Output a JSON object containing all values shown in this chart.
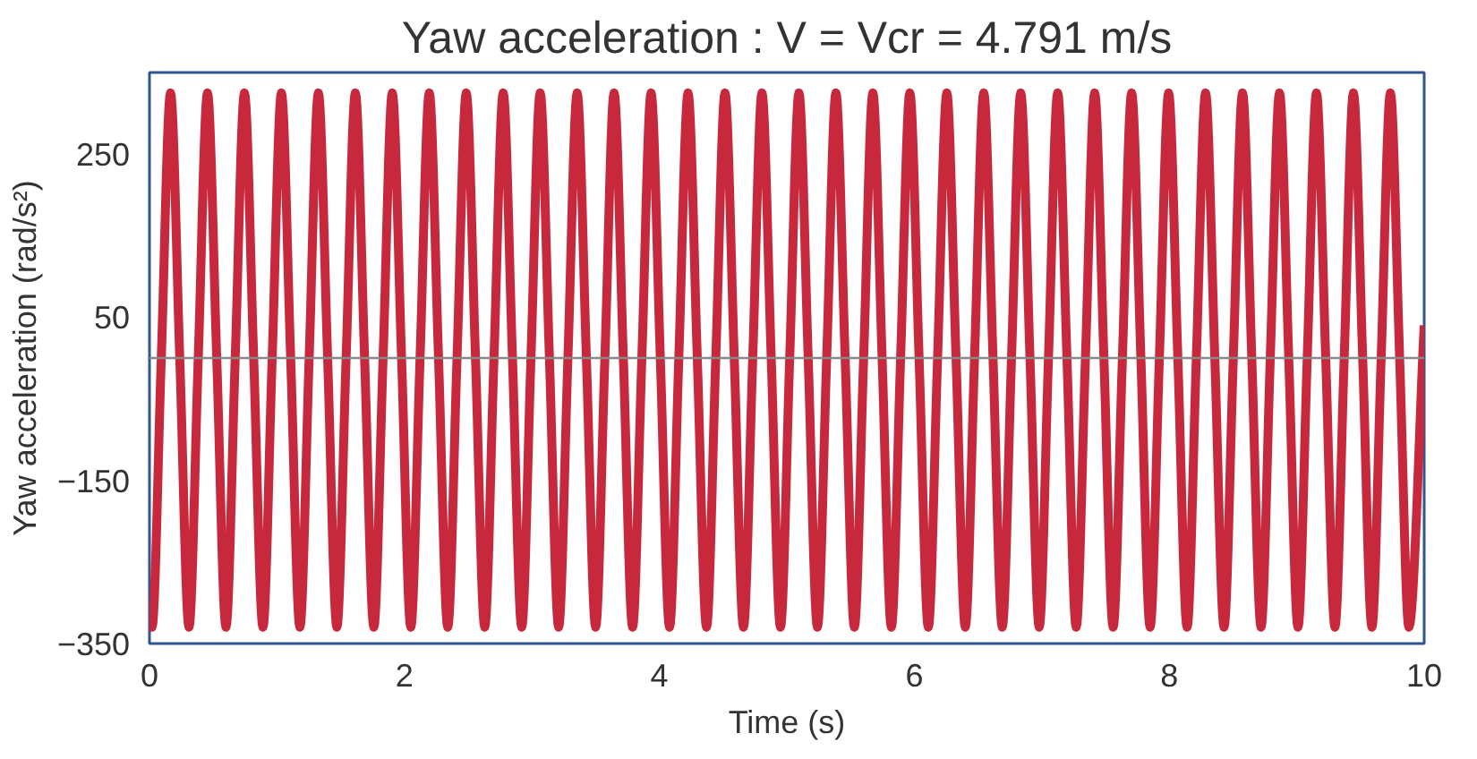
{
  "chart_data": {
    "type": "line",
    "title": "Yaw acceleration : V = Vcr = 4.791 m/s",
    "xlabel": "Time (s)",
    "ylabel": "Yaw acceleration (rad/s²)",
    "xlim": [
      0,
      10
    ],
    "ylim": [
      -350,
      350
    ],
    "xticks": [
      0,
      2,
      4,
      6,
      8,
      10
    ],
    "yticks": [
      -350,
      -150,
      50,
      250
    ],
    "grid": false,
    "ref_lines": [
      {
        "axis": "y",
        "value": 0,
        "color": "#888888"
      }
    ],
    "marker": "none",
    "line_style": "solid",
    "series": [
      {
        "color": "#c8283c",
        "x": [
          0,
          0.02,
          0.0925,
          0.165,
          0.2375,
          0.31,
          0.3825,
          0.455,
          0.5275,
          0.6,
          0.6725,
          0.745,
          0.8175,
          0.89,
          0.9625,
          1.035,
          1.1075,
          1.18,
          1.2525,
          1.325,
          1.3975,
          1.47,
          1.5425,
          1.615,
          1.6875,
          1.76,
          1.8325,
          1.905,
          1.9775,
          2.05,
          2.1225,
          2.195,
          2.2675,
          2.34,
          2.4125,
          2.485,
          2.5575,
          2.63,
          2.7025,
          2.775,
          2.8475,
          2.92,
          2.9925,
          3.065,
          3.1375,
          3.21,
          3.2825,
          3.355,
          3.4275,
          3.5,
          3.5725,
          3.645,
          3.7175,
          3.79,
          3.8625,
          3.935,
          4.0075,
          4.08,
          4.1525,
          4.225,
          4.2975,
          4.37,
          4.4425,
          4.515,
          4.5875,
          4.66,
          4.7325,
          4.805,
          4.8775,
          4.95,
          5.0225,
          5.095,
          5.1675,
          5.24,
          5.3125,
          5.385,
          5.4575,
          5.53,
          5.6025,
          5.675,
          5.7475,
          5.82,
          5.8925,
          5.965,
          6.0375,
          6.11,
          6.1825,
          6.255,
          6.3275,
          6.4,
          6.4725,
          6.545,
          6.6175,
          6.69,
          6.7625,
          6.835,
          6.9075,
          6.98,
          7.0525,
          7.125,
          7.1975,
          7.27,
          7.3425,
          7.415,
          7.4875,
          7.56,
          7.6325,
          7.705,
          7.7775,
          7.85,
          7.9225,
          7.995,
          8.0675,
          8.14,
          8.2125,
          8.285,
          8.3575,
          8.43,
          8.5025,
          8.575,
          8.6475,
          8.72,
          8.7925,
          8.865,
          8.9375,
          9.01,
          9.0825,
          9.155,
          9.2275,
          9.3,
          9.3725,
          9.445,
          9.5175,
          9.59,
          9.6625,
          9.735,
          9.8075,
          9.88,
          10
        ],
        "values": [
          -300,
          -330,
          0,
          325,
          0,
          -330,
          0,
          325,
          0,
          -330,
          0,
          325,
          0,
          -330,
          0,
          325,
          0,
          -330,
          0,
          325,
          0,
          -330,
          0,
          325,
          0,
          -330,
          0,
          325,
          0,
          -330,
          0,
          325,
          0,
          -330,
          0,
          325,
          0,
          -330,
          0,
          325,
          0,
          -330,
          0,
          325,
          0,
          -330,
          0,
          325,
          0,
          -330,
          0,
          325,
          0,
          -330,
          0,
          325,
          0,
          -330,
          0,
          325,
          0,
          -330,
          0,
          325,
          0,
          -330,
          0,
          325,
          0,
          -330,
          0,
          325,
          0,
          -330,
          0,
          325,
          0,
          -330,
          0,
          325,
          0,
          -330,
          0,
          325,
          0,
          -330,
          0,
          325,
          0,
          -330,
          0,
          325,
          0,
          -330,
          0,
          325,
          0,
          -330,
          0,
          325,
          0,
          -330,
          0,
          325,
          0,
          -330,
          0,
          325,
          0,
          -330,
          0,
          325,
          0,
          -330,
          0,
          325,
          0,
          -330,
          0,
          325,
          0,
          -330,
          0,
          325,
          0,
          -330,
          0,
          325,
          0,
          -330,
          0,
          325,
          0,
          -330,
          0,
          325,
          0,
          -330,
          40
        ]
      }
    ]
  }
}
